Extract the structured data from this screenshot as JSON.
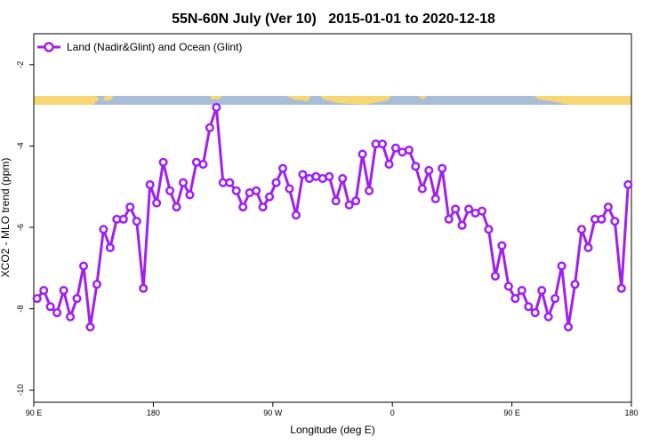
{
  "chart_data": {
    "type": "line",
    "title": "55N-60N July (Ver 10)   2015-01-01 to 2020-12-18",
    "x_label": "Longitude (deg E)",
    "y_label": "XCO2 - MLO trend (ppm)",
    "x": [
      92.5,
      97.5,
      102.5,
      107.5,
      112.5,
      117.5,
      122.5,
      127.5,
      132.5,
      137.5,
      142.5,
      147.5,
      152.5,
      157.5,
      162.5,
      167.5,
      172.5,
      177.5,
      182.5,
      187.5,
      192.5,
      197.5,
      202.5,
      207.5,
      212.5,
      217.5,
      222.5,
      227.5,
      232.5,
      237.5,
      242.5,
      247.5,
      252.5,
      257.5,
      262.5,
      267.5,
      272.5,
      277.5,
      282.5,
      287.5,
      292.5,
      297.5,
      302.5,
      307.5,
      312.5,
      317.5,
      322.5,
      327.5,
      332.5,
      337.5,
      342.5,
      347.5,
      352.5,
      357.5,
      362.5,
      367.5,
      372.5,
      377.5,
      382.5,
      387.5,
      392.5,
      397.5,
      402.5,
      407.5,
      412.5,
      417.5,
      422.5,
      427.5,
      432.5,
      437.5,
      442.5,
      447.5,
      452.5,
      457.5,
      462.5,
      467.5,
      472.5,
      477.5,
      482.5,
      487.5,
      492.5,
      497.5,
      502.5,
      507.5,
      512.5,
      517.5,
      522.5,
      527.5,
      532.5,
      537.5
    ],
    "series": [
      {
        "name": "Land (Nadir&Glint) and Ocean (Glint)",
        "color": "#a020f0",
        "values": [
          -7.75,
          -7.55,
          -7.95,
          -8.1,
          -7.55,
          -8.2,
          -7.75,
          -6.95,
          -8.45,
          -7.4,
          -6.05,
          -6.5,
          -5.8,
          -5.8,
          -5.5,
          -5.85,
          -7.5,
          -4.95,
          -5.4,
          -4.4,
          -5.1,
          -5.5,
          -4.9,
          -5.2,
          -4.4,
          -4.45,
          -3.55,
          -3.05,
          -4.9,
          -4.9,
          -5.1,
          -5.5,
          -5.15,
          -5.1,
          -5.5,
          -5.25,
          -4.9,
          -4.55,
          -5.05,
          -5.7,
          -4.7,
          -4.8,
          -4.75,
          -4.8,
          -4.75,
          -5.35,
          -4.8,
          -5.45,
          -5.35,
          -4.2,
          -5.1,
          -3.95,
          -3.95,
          -4.45,
          -4.05,
          -4.15,
          -4.1,
          -4.5,
          -5.05,
          -4.6,
          -5.3,
          -4.55,
          -5.8,
          -5.55,
          -5.95,
          -5.55,
          -5.65,
          -5.6,
          -6.05,
          -7.2,
          -6.45,
          -7.45,
          -7.75,
          -7.55,
          -7.95,
          -8.1,
          -7.55,
          -8.2,
          -7.75,
          -6.95,
          -8.45,
          -7.4,
          -6.05,
          -6.5,
          -5.8,
          -5.8,
          -5.5,
          -5.85,
          -7.5,
          -4.95
        ]
      }
    ],
    "xlim": [
      90,
      540
    ],
    "xticks": [
      {
        "value": 90,
        "label": "90 E"
      },
      {
        "value": 180,
        "label": "180"
      },
      {
        "value": 270,
        "label": "90 W"
      },
      {
        "value": 360,
        "label": "0"
      },
      {
        "value": 450,
        "label": "90 E"
      },
      {
        "value": 540,
        "label": "180"
      }
    ],
    "ylim": [
      -10.3,
      -1.24
    ],
    "yticks": [
      -2,
      -4,
      -6,
      -8,
      -10
    ],
    "legend": "top-left"
  }
}
